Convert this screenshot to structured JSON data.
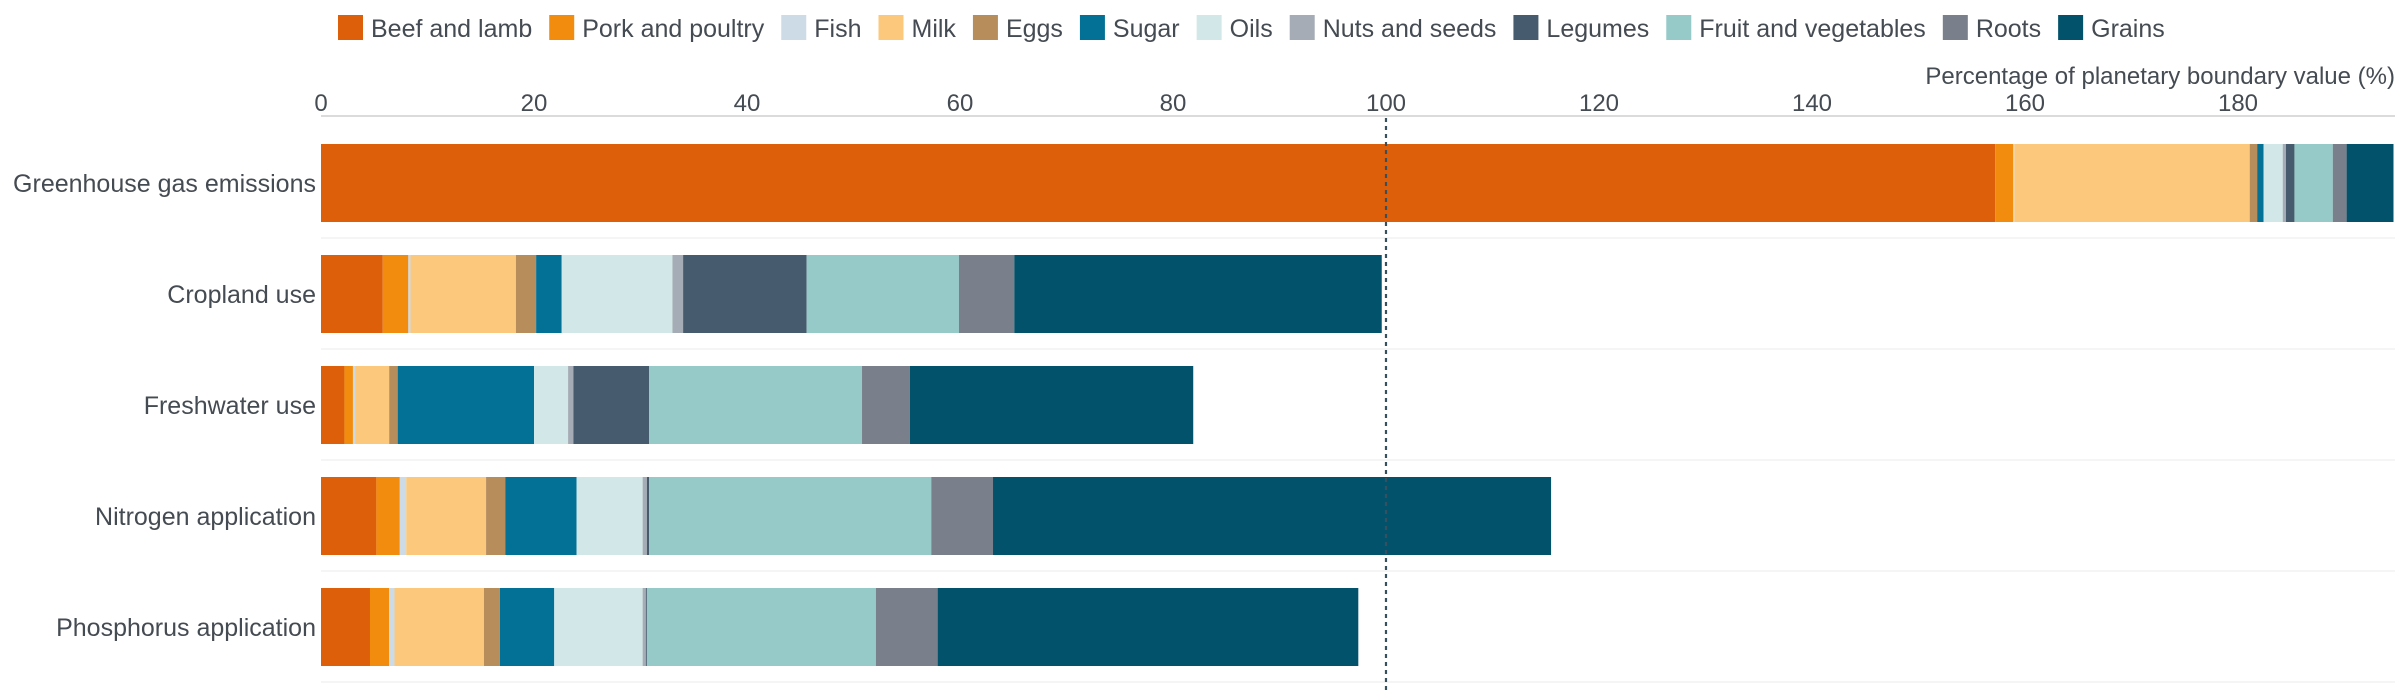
{
  "chart_data": {
    "type": "bar",
    "orientation": "horizontal",
    "stacked": true,
    "xlabel": "Percentage of planetary boundary value (%)",
    "xlim": [
      0,
      195
    ],
    "xticks": [
      0,
      20,
      40,
      60,
      80,
      100,
      120,
      140,
      160,
      180
    ],
    "reference_line": 100,
    "legend_position": "top",
    "categories": [
      "Greenhouse gas emissions",
      "Cropland use",
      "Freshwater use",
      "Nitrogen application",
      "Phosphorus application"
    ],
    "series": [
      {
        "name": "Beef and lamb",
        "color": "#dd5f0a",
        "values": [
          157.2,
          5.8,
          2.2,
          5.2,
          4.6
        ]
      },
      {
        "name": "Pork and poultry",
        "color": "#f28c0f",
        "values": [
          1.7,
          2.4,
          0.8,
          2.2,
          1.8
        ]
      },
      {
        "name": "Fish",
        "color": "#cddbe6",
        "values": [
          0.1,
          0.2,
          0.2,
          0.6,
          0.5
        ]
      },
      {
        "name": "Milk",
        "color": "#fcc97c",
        "values": [
          22.1,
          9.9,
          3.2,
          7.5,
          8.4
        ]
      },
      {
        "name": "Eggs",
        "color": "#b88d5c",
        "values": [
          0.7,
          1.9,
          0.8,
          1.8,
          1.5
        ]
      },
      {
        "name": "Sugar",
        "color": "#037195",
        "values": [
          0.6,
          2.4,
          12.8,
          6.7,
          5.1
        ]
      },
      {
        "name": "Oils",
        "color": "#d2e7e7",
        "values": [
          1.8,
          10.4,
          3.2,
          6.2,
          8.3
        ]
      },
      {
        "name": "Nuts and seeds",
        "color": "#a5acb5",
        "values": [
          0.3,
          1.0,
          0.5,
          0.4,
          0.3
        ]
      },
      {
        "name": "Legumes",
        "color": "#465b6d",
        "values": [
          0.8,
          11.6,
          7.1,
          0.2,
          0.1
        ]
      },
      {
        "name": "Fruit and vegetables",
        "color": "#95cac9",
        "values": [
          3.6,
          14.3,
          20.0,
          26.5,
          21.5
        ]
      },
      {
        "name": "Roots",
        "color": "#797f8b",
        "values": [
          1.3,
          5.2,
          4.5,
          5.8,
          5.8
        ]
      },
      {
        "name": "Grains",
        "color": "#02526b",
        "values": [
          4.4,
          34.5,
          26.6,
          52.4,
          39.5
        ]
      }
    ]
  }
}
